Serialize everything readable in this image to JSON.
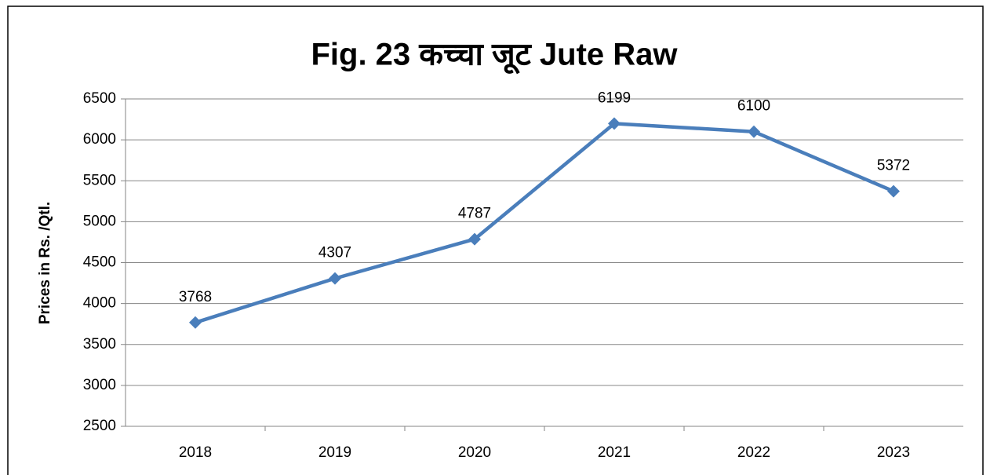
{
  "chart_data": {
    "type": "line",
    "title": "Fig. 23 कच्चा जूट Jute Raw",
    "y_label": "Prices in Rs. /Qtl.",
    "categories": [
      "2018",
      "2019",
      "2020",
      "2021",
      "2022",
      "2023"
    ],
    "values": [
      3768,
      4307,
      4787,
      6199,
      6100,
      5372
    ],
    "color": "#4a7ebb",
    "ylim": [
      2500,
      6500
    ],
    "yticks": [
      2500,
      3000,
      3500,
      4000,
      4500,
      5000,
      5500,
      6000,
      6500
    ],
    "grid": true
  }
}
